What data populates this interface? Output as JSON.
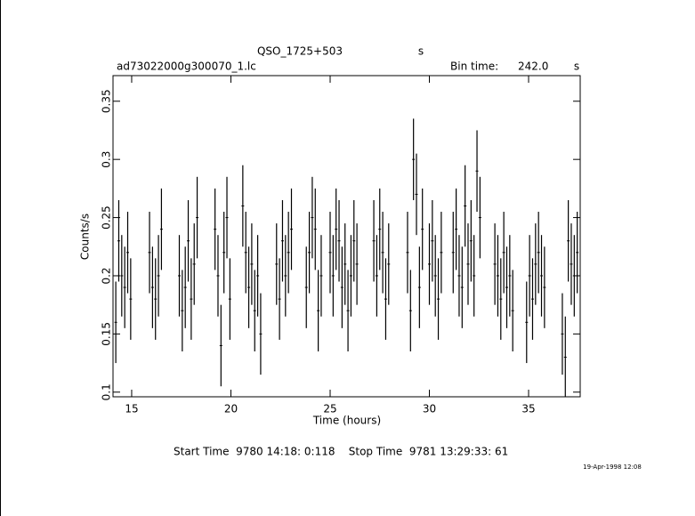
{
  "chart_data": {
    "type": "errorbar",
    "title": "QSO_1725+503",
    "title_unit": "s",
    "file_label": "ad73022000g300070_1.lc",
    "bin_time_label": "Bin time:",
    "bin_time": "242.0",
    "bin_time_unit": "s",
    "xlabel": "Time (hours)",
    "ylabel": "Counts/s",
    "footer": "Start Time  9780 14:18: 0:118    Stop Time  9781 13:29:33: 61",
    "date": "19-Apr-1998 12:08",
    "color": "#000000",
    "xlim": [
      14.06,
      37.6
    ],
    "ylim": [
      0.096,
      0.372
    ],
    "xticks": [
      15,
      20,
      25,
      30,
      35
    ],
    "yticks": [
      0.1,
      0.15,
      0.2,
      0.25,
      0.3,
      0.35
    ],
    "error": 0.035,
    "x": [
      14.2,
      14.35,
      14.5,
      14.65,
      14.8,
      14.95,
      15.9,
      16.05,
      16.2,
      16.35,
      16.5,
      17.4,
      17.55,
      17.7,
      17.85,
      18.0,
      18.15,
      18.3,
      19.2,
      19.35,
      19.5,
      19.65,
      19.8,
      19.95,
      20.6,
      20.75,
      20.9,
      21.05,
      21.2,
      21.35,
      21.5,
      22.3,
      22.45,
      22.6,
      22.75,
      22.9,
      23.05,
      23.8,
      23.95,
      24.1,
      24.25,
      24.4,
      24.55,
      25.0,
      25.15,
      25.3,
      25.45,
      25.6,
      25.75,
      25.9,
      26.05,
      26.2,
      26.35,
      27.2,
      27.35,
      27.5,
      27.65,
      27.8,
      27.95,
      28.9,
      29.05,
      29.2,
      29.35,
      29.5,
      29.65,
      30.0,
      30.15,
      30.3,
      30.45,
      30.6,
      31.2,
      31.35,
      31.5,
      31.65,
      31.8,
      31.95,
      32.1,
      32.25,
      32.4,
      32.55,
      33.3,
      33.45,
      33.6,
      33.75,
      33.9,
      34.05,
      34.2,
      34.9,
      35.05,
      35.2,
      35.35,
      35.5,
      35.65,
      35.8,
      36.7,
      36.85,
      37.0,
      37.15,
      37.3,
      37.45
    ],
    "values": [
      0.16,
      0.23,
      0.2,
      0.19,
      0.22,
      0.18,
      0.22,
      0.19,
      0.18,
      0.2,
      0.24,
      0.2,
      0.17,
      0.19,
      0.23,
      0.18,
      0.21,
      0.25,
      0.24,
      0.2,
      0.14,
      0.22,
      0.25,
      0.18,
      0.26,
      0.22,
      0.19,
      0.21,
      0.17,
      0.2,
      0.15,
      0.21,
      0.18,
      0.23,
      0.2,
      0.22,
      0.24,
      0.19,
      0.22,
      0.25,
      0.24,
      0.17,
      0.2,
      0.22,
      0.2,
      0.24,
      0.23,
      0.19,
      0.21,
      0.17,
      0.2,
      0.23,
      0.21,
      0.23,
      0.2,
      0.24,
      0.22,
      0.18,
      0.21,
      0.22,
      0.17,
      0.3,
      0.27,
      0.19,
      0.24,
      0.21,
      0.23,
      0.2,
      0.18,
      0.22,
      0.22,
      0.24,
      0.2,
      0.19,
      0.26,
      0.21,
      0.23,
      0.2,
      0.29,
      0.25,
      0.21,
      0.2,
      0.18,
      0.22,
      0.19,
      0.2,
      0.17,
      0.16,
      0.2,
      0.18,
      0.21,
      0.22,
      0.2,
      0.19,
      0.15,
      0.13,
      0.23,
      0.21,
      0.2,
      0.22
    ]
  }
}
